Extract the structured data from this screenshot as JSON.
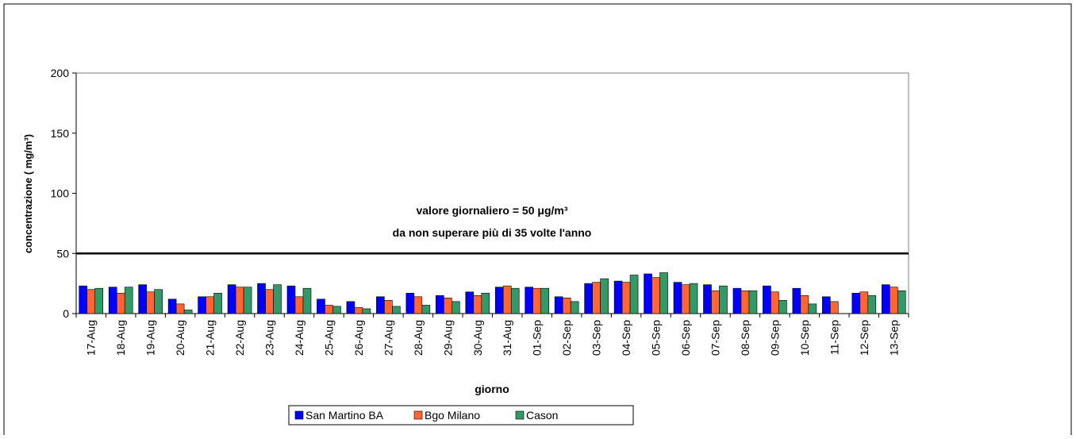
{
  "chart_data": {
    "type": "bar",
    "categories": [
      "17-Aug",
      "18-Aug",
      "19-Aug",
      "20-Aug",
      "21-Aug",
      "22-Aug",
      "23-Aug",
      "24-Aug",
      "25-Aug",
      "26-Aug",
      "27-Aug",
      "28-Aug",
      "29-Aug",
      "30-Aug",
      "31-Aug",
      "01-Sep",
      "02-Sep",
      "03-Sep",
      "04-Sep",
      "05-Sep",
      "06-Sep",
      "07-Sep",
      "08-Sep",
      "09-Sep",
      "10-Sep",
      "11-Sep",
      "12-Sep",
      "13-Sep"
    ],
    "series": [
      {
        "name": "San Martino BA",
        "color": "#0000ff",
        "values": [
          23,
          22,
          24,
          12,
          14,
          24,
          25,
          23,
          12,
          10,
          14,
          17,
          15,
          18,
          22,
          22,
          14,
          25,
          27,
          33,
          26,
          24,
          21,
          23,
          21,
          14,
          17,
          24
        ]
      },
      {
        "name": "Bgo Milano",
        "color": "#ff6633",
        "values": [
          20,
          17,
          18,
          8,
          14,
          22,
          20,
          14,
          7,
          5,
          11,
          14,
          13,
          15,
          23,
          21,
          13,
          26,
          26,
          30,
          24,
          19,
          19,
          18,
          15,
          10,
          18,
          22
        ]
      },
      {
        "name": "Cason",
        "color": "#339966",
        "values": [
          21,
          22,
          20,
          3,
          17,
          22,
          24,
          21,
          6,
          4,
          6,
          7,
          10,
          17,
          21,
          21,
          10,
          29,
          32,
          34,
          25,
          23,
          19,
          11,
          8,
          null,
          15,
          19
        ]
      }
    ],
    "ylim": [
      0,
      200
    ],
    "yticks": [
      0,
      50,
      100,
      150,
      200
    ],
    "grid": false,
    "ylabel": "concentrazione ( mg/m³)",
    "xlabel": "giorno",
    "threshold": 50,
    "annotation": [
      "valore giornaliero = 50 μg/m³",
      "da non superare più di 35  volte l'anno"
    ],
    "legend": "bottom"
  }
}
